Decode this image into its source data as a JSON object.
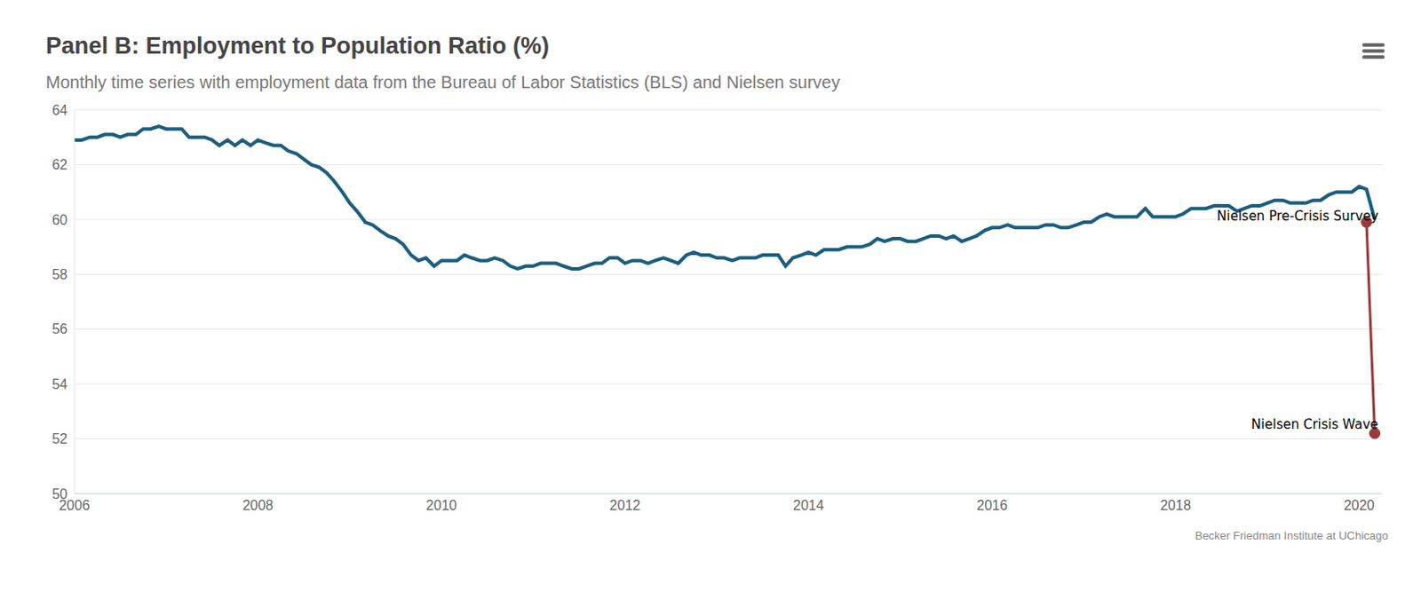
{
  "chart_data": {
    "type": "line",
    "title": "Panel B: Employment to Population Ratio (%)",
    "subtitle": "Monthly time series with employment data from the Bureau of Labor Statistics (BLS) and Nielsen survey",
    "credit": "Becker Friedman Institute at UChicago",
    "xlim": [
      2006,
      2020.25
    ],
    "xticks": [
      2006,
      2008,
      2010,
      2012,
      2014,
      2016,
      2018,
      2020
    ],
    "ylim": [
      50,
      64
    ],
    "yticks": [
      50,
      52,
      54,
      56,
      58,
      60,
      62,
      64
    ],
    "grid": true,
    "series": [
      {
        "color": "#1b5e7e",
        "marker": "none",
        "line_style": "solid",
        "x": [
          2006,
          2006.08,
          2006.17,
          2006.25,
          2006.33,
          2006.42,
          2006.5,
          2006.58,
          2006.67,
          2006.75,
          2006.83,
          2006.92,
          2007,
          2007.08,
          2007.17,
          2007.25,
          2007.33,
          2007.42,
          2007.5,
          2007.58,
          2007.67,
          2007.75,
          2007.83,
          2007.92,
          2008,
          2008.08,
          2008.17,
          2008.25,
          2008.33,
          2008.42,
          2008.5,
          2008.58,
          2008.67,
          2008.75,
          2008.83,
          2008.92,
          2009,
          2009.08,
          2009.17,
          2009.25,
          2009.33,
          2009.42,
          2009.5,
          2009.58,
          2009.67,
          2009.75,
          2009.83,
          2009.92,
          2010,
          2010.08,
          2010.17,
          2010.25,
          2010.33,
          2010.42,
          2010.5,
          2010.58,
          2010.67,
          2010.75,
          2010.83,
          2010.92,
          2011,
          2011.08,
          2011.17,
          2011.25,
          2011.33,
          2011.42,
          2011.5,
          2011.58,
          2011.67,
          2011.75,
          2011.83,
          2011.92,
          2012,
          2012.08,
          2012.17,
          2012.25,
          2012.33,
          2012.42,
          2012.5,
          2012.58,
          2012.67,
          2012.75,
          2012.83,
          2012.92,
          2013,
          2013.08,
          2013.17,
          2013.25,
          2013.33,
          2013.42,
          2013.5,
          2013.58,
          2013.67,
          2013.75,
          2013.83,
          2013.92,
          2014,
          2014.08,
          2014.17,
          2014.25,
          2014.33,
          2014.42,
          2014.5,
          2014.58,
          2014.67,
          2014.75,
          2014.83,
          2014.92,
          2015,
          2015.08,
          2015.17,
          2015.25,
          2015.33,
          2015.42,
          2015.5,
          2015.58,
          2015.67,
          2015.75,
          2015.83,
          2015.92,
          2016,
          2016.08,
          2016.17,
          2016.25,
          2016.33,
          2016.42,
          2016.5,
          2016.58,
          2016.67,
          2016.75,
          2016.83,
          2016.92,
          2017,
          2017.08,
          2017.17,
          2017.25,
          2017.33,
          2017.42,
          2017.5,
          2017.58,
          2017.67,
          2017.75,
          2017.83,
          2017.92,
          2018,
          2018.08,
          2018.17,
          2018.25,
          2018.33,
          2018.42,
          2018.5,
          2018.58,
          2018.67,
          2018.75,
          2018.83,
          2018.92,
          2019,
          2019.08,
          2019.17,
          2019.25,
          2019.33,
          2019.42,
          2019.5,
          2019.58,
          2019.67,
          2019.75,
          2019.83,
          2019.92,
          2020,
          2020.08,
          2020.17
        ],
        "values": [
          62.9,
          62.9,
          63.0,
          63.0,
          63.1,
          63.1,
          63.0,
          63.1,
          63.1,
          63.3,
          63.3,
          63.4,
          63.3,
          63.3,
          63.3,
          63.0,
          63.0,
          63.0,
          62.9,
          62.7,
          62.9,
          62.7,
          62.9,
          62.7,
          62.9,
          62.8,
          62.7,
          62.7,
          62.5,
          62.4,
          62.2,
          62.0,
          61.9,
          61.7,
          61.4,
          61.0,
          60.6,
          60.3,
          59.9,
          59.8,
          59.6,
          59.4,
          59.3,
          59.1,
          58.7,
          58.5,
          58.6,
          58.3,
          58.5,
          58.5,
          58.5,
          58.7,
          58.6,
          58.5,
          58.5,
          58.6,
          58.5,
          58.3,
          58.2,
          58.3,
          58.3,
          58.4,
          58.4,
          58.4,
          58.3,
          58.2,
          58.2,
          58.3,
          58.4,
          58.4,
          58.6,
          58.6,
          58.4,
          58.5,
          58.5,
          58.4,
          58.5,
          58.6,
          58.5,
          58.4,
          58.7,
          58.8,
          58.7,
          58.7,
          58.6,
          58.6,
          58.5,
          58.6,
          58.6,
          58.6,
          58.7,
          58.7,
          58.7,
          58.3,
          58.6,
          58.7,
          58.8,
          58.7,
          58.9,
          58.9,
          58.9,
          59.0,
          59.0,
          59.0,
          59.1,
          59.3,
          59.2,
          59.3,
          59.3,
          59.2,
          59.2,
          59.3,
          59.4,
          59.4,
          59.3,
          59.4,
          59.2,
          59.3,
          59.4,
          59.6,
          59.7,
          59.7,
          59.8,
          59.7,
          59.7,
          59.7,
          59.7,
          59.8,
          59.8,
          59.7,
          59.7,
          59.8,
          59.9,
          59.9,
          60.1,
          60.2,
          60.1,
          60.1,
          60.1,
          60.1,
          60.4,
          60.1,
          60.1,
          60.1,
          60.1,
          60.2,
          60.4,
          60.4,
          60.4,
          60.5,
          60.5,
          60.5,
          60.3,
          60.4,
          60.5,
          60.5,
          60.6,
          60.7,
          60.7,
          60.6,
          60.6,
          60.6,
          60.7,
          60.7,
          60.9,
          61.0,
          61.0,
          61.0,
          61.2,
          61.1,
          60.0
        ]
      },
      {
        "color": "#9b3a3a",
        "marker": "circle",
        "line_style": "solid",
        "x": [
          2020.08,
          2020.17
        ],
        "values": [
          59.9,
          52.2
        ],
        "labels": [
          "Nielsen Pre-Crisis Survey",
          "Nielsen Crisis Wave"
        ]
      }
    ]
  }
}
